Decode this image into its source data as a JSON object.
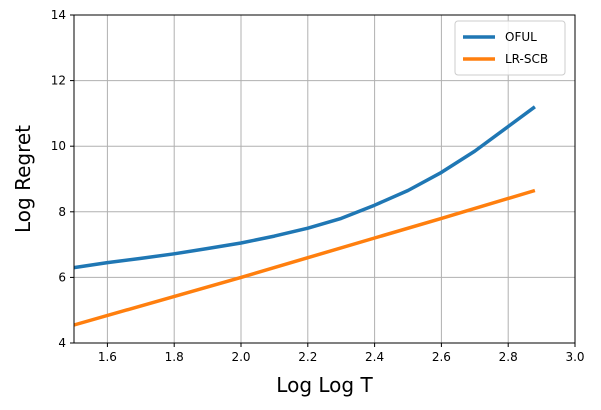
{
  "chart_data": {
    "type": "line",
    "xlabel": "Log Log T",
    "ylabel": "Log Regret",
    "xlim": [
      1.5,
      3.0
    ],
    "ylim": [
      4,
      14
    ],
    "xticks": [
      "1.6",
      "1.8",
      "2.0",
      "2.2",
      "2.4",
      "2.6",
      "2.8",
      "3.0"
    ],
    "yticks": [
      "4",
      "6",
      "8",
      "10",
      "12",
      "14"
    ],
    "grid": true,
    "legend_position": "top-right",
    "series": [
      {
        "name": "OFUL",
        "color": "#1f77b4",
        "x": [
          1.5,
          1.6,
          1.7,
          1.8,
          1.9,
          2.0,
          2.1,
          2.2,
          2.3,
          2.4,
          2.5,
          2.6,
          2.7,
          2.8,
          2.88
        ],
        "y": [
          6.3,
          6.45,
          6.58,
          6.72,
          6.88,
          7.05,
          7.26,
          7.5,
          7.8,
          8.2,
          8.65,
          9.2,
          9.85,
          10.6,
          11.2
        ]
      },
      {
        "name": "LR-SCB",
        "color": "#ff7f0e",
        "x": [
          1.5,
          2.0,
          2.2,
          2.4,
          2.6,
          2.88
        ],
        "y": [
          4.55,
          6.0,
          6.6,
          7.2,
          7.8,
          8.65
        ]
      }
    ]
  }
}
